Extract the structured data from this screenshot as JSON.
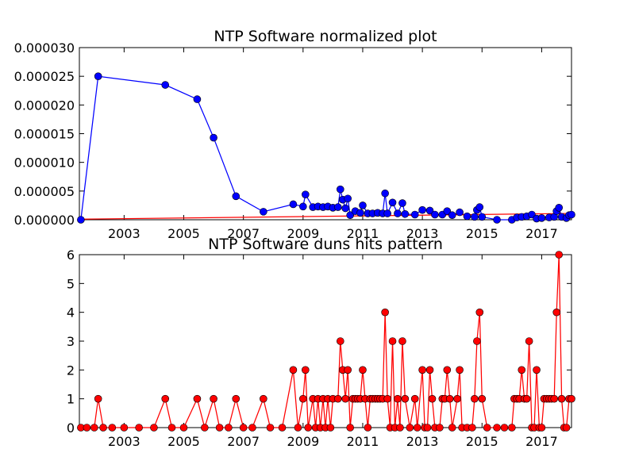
{
  "chart_data": [
    {
      "type": "line",
      "title": "NTP Software normalized plot",
      "xlabel": "",
      "ylabel": "",
      "xlim": [
        2001.5,
        2018.0
      ],
      "ylim": [
        0,
        3e-05
      ],
      "xticks": [
        2003,
        2005,
        2007,
        2009,
        2011,
        2013,
        2015,
        2017
      ],
      "xtick_labels": [
        "2003",
        "2005",
        "2007",
        "2009",
        "2011",
        "2013",
        "2015",
        "2017"
      ],
      "yticks": [
        0,
        5e-06,
        1e-05,
        1.5e-05,
        2e-05,
        2.5e-05,
        3e-05
      ],
      "ytick_labels": [
        "0.000000",
        "0.000005",
        "0.000010",
        "0.000015",
        "0.000020",
        "0.000025",
        "0.000030"
      ],
      "grid": false,
      "series": [
        {
          "color": "#0000ff",
          "marker": "circle",
          "points": [
            [
              2001.55,
              0
            ],
            [
              2002.13,
              2.5e-05
            ],
            [
              2004.38,
              2.35e-05
            ],
            [
              2005.45,
              2.1e-05
            ],
            [
              2006.0,
              1.43e-05
            ],
            [
              2006.75,
              4.1e-06
            ],
            [
              2007.67,
              1.4e-06
            ],
            [
              2008.67,
              2.7e-06
            ],
            [
              2009.0,
              2.3e-06
            ],
            [
              2009.08,
              4.4e-06
            ],
            [
              2009.33,
              2.2e-06
            ],
            [
              2009.5,
              2.3e-06
            ],
            [
              2009.67,
              2.2e-06
            ],
            [
              2009.83,
              2.3e-06
            ],
            [
              2010.0,
              2.1e-06
            ],
            [
              2010.17,
              2.2e-06
            ],
            [
              2010.25,
              5.3e-06
            ],
            [
              2010.33,
              3.5e-06
            ],
            [
              2010.42,
              2e-06
            ],
            [
              2010.5,
              3.7e-06
            ],
            [
              2010.58,
              8e-07
            ],
            [
              2010.75,
              1.5e-06
            ],
            [
              2010.92,
              1.2e-06
            ],
            [
              2011.0,
              2.5e-06
            ],
            [
              2011.17,
              1.1e-06
            ],
            [
              2011.33,
              1.1e-06
            ],
            [
              2011.5,
              1.2e-06
            ],
            [
              2011.67,
              1.1e-06
            ],
            [
              2011.75,
              4.6e-06
            ],
            [
              2011.83,
              1.1e-06
            ],
            [
              2012.0,
              3e-06
            ],
            [
              2012.17,
              1.1e-06
            ],
            [
              2012.33,
              2.9e-06
            ],
            [
              2012.42,
              1e-06
            ],
            [
              2012.75,
              9e-07
            ],
            [
              2013.0,
              1.7e-06
            ],
            [
              2013.25,
              1.6e-06
            ],
            [
              2013.42,
              9e-07
            ],
            [
              2013.67,
              9e-07
            ],
            [
              2013.83,
              1.5e-06
            ],
            [
              2014.0,
              8e-07
            ],
            [
              2014.25,
              1.3e-06
            ],
            [
              2014.5,
              6e-07
            ],
            [
              2014.75,
              5e-07
            ],
            [
              2014.83,
              1.7e-06
            ],
            [
              2014.92,
              2.2e-06
            ],
            [
              2015.0,
              5e-07
            ],
            [
              2015.5,
              0
            ],
            [
              2016.0,
              0
            ],
            [
              2016.17,
              4e-07
            ],
            [
              2016.33,
              5e-07
            ],
            [
              2016.5,
              6e-07
            ],
            [
              2016.67,
              9e-07
            ],
            [
              2016.83,
              2e-07
            ],
            [
              2017.0,
              3e-07
            ],
            [
              2017.25,
              4e-07
            ],
            [
              2017.42,
              5e-07
            ],
            [
              2017.5,
              1.5e-06
            ],
            [
              2017.58,
              2.1e-06
            ],
            [
              2017.67,
              5e-07
            ],
            [
              2017.83,
              3e-07
            ],
            [
              2017.92,
              8e-07
            ],
            [
              2018.0,
              9e-07
            ]
          ]
        }
      ],
      "trend_line": {
        "color": "#ff0000",
        "points": [
          [
            2001.5,
            1e-07
          ],
          [
            2018.0,
            1.1e-06
          ]
        ]
      }
    },
    {
      "type": "line",
      "title": "NTP Software duns hits pattern",
      "xlabel": "",
      "ylabel": "",
      "xlim": [
        2001.5,
        2018.0
      ],
      "ylim": [
        0,
        6
      ],
      "xticks": [
        2003,
        2005,
        2007,
        2009,
        2011,
        2013,
        2015,
        2017
      ],
      "xtick_labels": [
        "2003",
        "2005",
        "2007",
        "2009",
        "2011",
        "2013",
        "2015",
        "2017"
      ],
      "yticks": [
        0,
        1,
        2,
        3,
        4,
        5,
        6
      ],
      "ytick_labels": [
        "0",
        "1",
        "2",
        "3",
        "4",
        "5",
        "6"
      ],
      "grid": false,
      "series": [
        {
          "color": "#ff0000",
          "marker": "circle",
          "points": [
            [
              2001.55,
              0
            ],
            [
              2001.75,
              0
            ],
            [
              2002.0,
              0
            ],
            [
              2002.13,
              1
            ],
            [
              2002.3,
              0
            ],
            [
              2002.6,
              0
            ],
            [
              2003.0,
              0
            ],
            [
              2003.5,
              0
            ],
            [
              2004.0,
              0
            ],
            [
              2004.38,
              1
            ],
            [
              2004.6,
              0
            ],
            [
              2005.0,
              0
            ],
            [
              2005.45,
              1
            ],
            [
              2005.7,
              0
            ],
            [
              2006.0,
              1
            ],
            [
              2006.2,
              0
            ],
            [
              2006.5,
              0
            ],
            [
              2006.75,
              1
            ],
            [
              2007.0,
              0
            ],
            [
              2007.3,
              0
            ],
            [
              2007.67,
              1
            ],
            [
              2007.9,
              0
            ],
            [
              2008.3,
              0
            ],
            [
              2008.67,
              2
            ],
            [
              2008.83,
              0
            ],
            [
              2009.0,
              1
            ],
            [
              2009.08,
              2
            ],
            [
              2009.17,
              0
            ],
            [
              2009.33,
              1
            ],
            [
              2009.42,
              0
            ],
            [
              2009.5,
              1
            ],
            [
              2009.58,
              0
            ],
            [
              2009.67,
              1
            ],
            [
              2009.75,
              0
            ],
            [
              2009.83,
              1
            ],
            [
              2009.92,
              0
            ],
            [
              2010.0,
              1
            ],
            [
              2010.17,
              1
            ],
            [
              2010.25,
              3
            ],
            [
              2010.33,
              2
            ],
            [
              2010.42,
              1
            ],
            [
              2010.5,
              2
            ],
            [
              2010.58,
              0
            ],
            [
              2010.67,
              1
            ],
            [
              2010.75,
              1
            ],
            [
              2010.83,
              1
            ],
            [
              2010.92,
              1
            ],
            [
              2011.0,
              2
            ],
            [
              2011.08,
              1
            ],
            [
              2011.17,
              0
            ],
            [
              2011.25,
              1
            ],
            [
              2011.33,
              1
            ],
            [
              2011.42,
              1
            ],
            [
              2011.5,
              1
            ],
            [
              2011.58,
              1
            ],
            [
              2011.67,
              1
            ],
            [
              2011.75,
              4
            ],
            [
              2011.83,
              1
            ],
            [
              2011.92,
              0
            ],
            [
              2012.0,
              3
            ],
            [
              2012.08,
              0
            ],
            [
              2012.17,
              1
            ],
            [
              2012.25,
              0
            ],
            [
              2012.33,
              3
            ],
            [
              2012.42,
              1
            ],
            [
              2012.58,
              0
            ],
            [
              2012.75,
              1
            ],
            [
              2012.83,
              0
            ],
            [
              2013.0,
              2
            ],
            [
              2013.08,
              0
            ],
            [
              2013.17,
              0
            ],
            [
              2013.25,
              2
            ],
            [
              2013.33,
              1
            ],
            [
              2013.42,
              0
            ],
            [
              2013.58,
              0
            ],
            [
              2013.67,
              1
            ],
            [
              2013.75,
              1
            ],
            [
              2013.83,
              2
            ],
            [
              2013.92,
              1
            ],
            [
              2014.0,
              0
            ],
            [
              2014.17,
              1
            ],
            [
              2014.25,
              2
            ],
            [
              2014.33,
              0
            ],
            [
              2014.5,
              0
            ],
            [
              2014.67,
              0
            ],
            [
              2014.75,
              1
            ],
            [
              2014.83,
              3
            ],
            [
              2014.92,
              4
            ],
            [
              2015.0,
              1
            ],
            [
              2015.17,
              0
            ],
            [
              2015.5,
              0
            ],
            [
              2015.75,
              0
            ],
            [
              2016.0,
              0
            ],
            [
              2016.08,
              1
            ],
            [
              2016.17,
              1
            ],
            [
              2016.25,
              1
            ],
            [
              2016.33,
              2
            ],
            [
              2016.42,
              1
            ],
            [
              2016.5,
              1
            ],
            [
              2016.58,
              3
            ],
            [
              2016.67,
              0
            ],
            [
              2016.75,
              0
            ],
            [
              2016.83,
              2
            ],
            [
              2016.92,
              0
            ],
            [
              2017.0,
              0
            ],
            [
              2017.08,
              1
            ],
            [
              2017.17,
              1
            ],
            [
              2017.25,
              1
            ],
            [
              2017.33,
              1
            ],
            [
              2017.42,
              1
            ],
            [
              2017.5,
              4
            ],
            [
              2017.58,
              6
            ],
            [
              2017.67,
              1
            ],
            [
              2017.75,
              0
            ],
            [
              2017.83,
              0
            ],
            [
              2017.92,
              1
            ],
            [
              2018.0,
              1
            ]
          ]
        }
      ]
    }
  ]
}
